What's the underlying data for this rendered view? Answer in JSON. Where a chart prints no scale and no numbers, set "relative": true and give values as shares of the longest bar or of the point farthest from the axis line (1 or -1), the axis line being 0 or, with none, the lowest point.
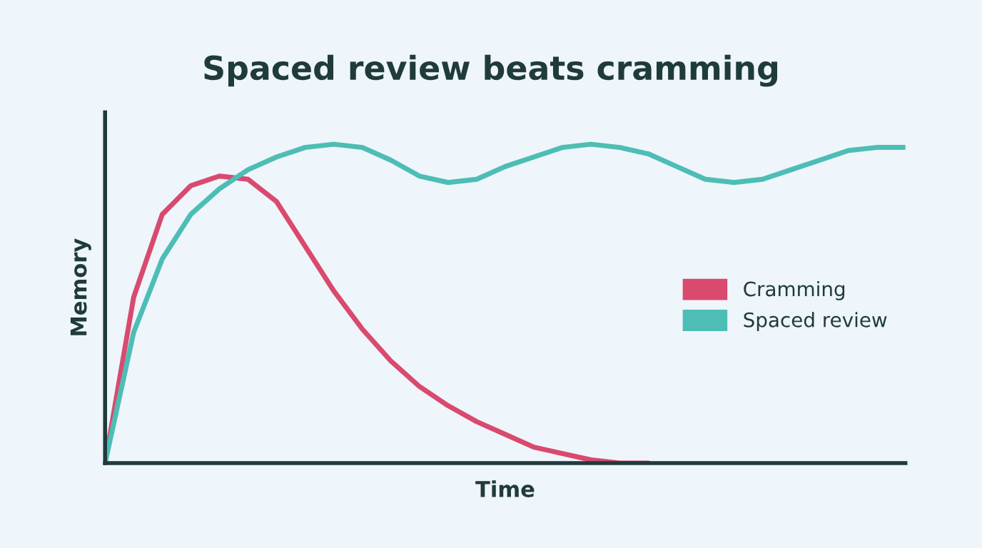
{
  "chart_data": {
    "type": "line",
    "title": "Spaced review beats cramming",
    "xlabel": "Time",
    "ylabel": "Memory",
    "relative": true,
    "legend": "right",
    "grid": false,
    "line_style": "solid",
    "marker": "none",
    "categories": [
      null,
      null,
      null,
      null,
      null,
      null,
      null,
      null,
      null,
      null,
      null,
      null,
      null,
      null,
      null,
      null,
      null,
      null,
      null,
      null,
      null,
      null,
      null,
      null,
      null,
      null,
      null,
      null,
      null
    ],
    "series": [
      {
        "name": "Cramming",
        "color": "#d94a6e",
        "values": [
          0,
          0.52,
          0.78,
          0.87,
          0.9,
          0.89,
          0.82,
          0.68,
          0.54,
          0.42,
          0.32,
          0.24,
          0.18,
          0.13,
          0.09,
          0.05,
          0.03,
          0.01,
          0.0,
          0,
          null,
          null,
          null,
          null,
          null,
          null,
          null,
          null,
          null
        ]
      },
      {
        "name": "Spaced review",
        "color": "#4dbdb5",
        "values": [
          0,
          0.41,
          0.64,
          0.78,
          0.86,
          0.92,
          0.96,
          0.99,
          1.0,
          0.99,
          0.95,
          0.9,
          0.88,
          0.89,
          0.93,
          0.96,
          0.99,
          1.0,
          0.99,
          0.97,
          0.93,
          0.89,
          0.88,
          0.89,
          0.92,
          0.95,
          0.98,
          0.99,
          0.99
        ]
      }
    ]
  }
}
